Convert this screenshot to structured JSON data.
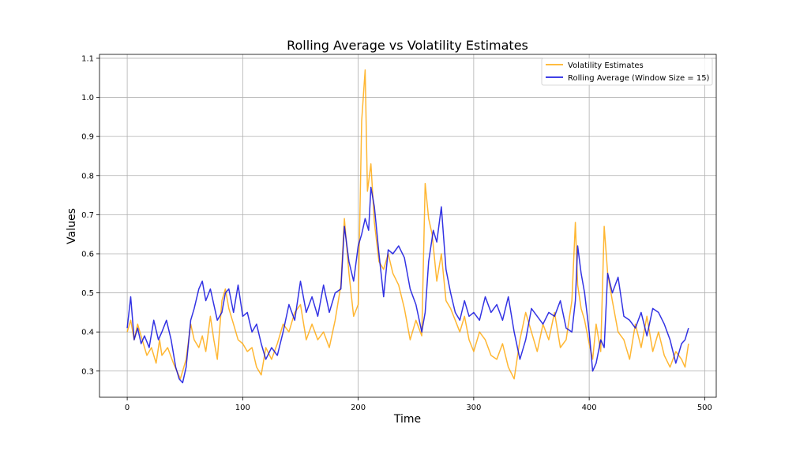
{
  "chart_data": {
    "type": "line",
    "title": "Rolling Average vs Volatility Estimates",
    "xlabel": "Time",
    "ylabel": "Values",
    "xlim": [
      -24,
      510
    ],
    "ylim": [
      0.233,
      1.11
    ],
    "xticks": [
      0,
      100,
      200,
      300,
      400,
      500
    ],
    "yticks": [
      0.3,
      0.4,
      0.5,
      0.6,
      0.7,
      0.8,
      0.9,
      1.0,
      1.1
    ],
    "grid": true,
    "legend_position": "top-right",
    "series": [
      {
        "name": "Volatility Estimates",
        "color": "#FFA500",
        "x": [
          0,
          3,
          6,
          9,
          10,
          13,
          17,
          21,
          25,
          28,
          30,
          35,
          40,
          43,
          46,
          48,
          51,
          55,
          58,
          62,
          65,
          68,
          72,
          75,
          78,
          82,
          85,
          88,
          92,
          96,
          100,
          104,
          108,
          112,
          116,
          120,
          125,
          130,
          135,
          140,
          145,
          150,
          155,
          160,
          165,
          170,
          175,
          180,
          185,
          188,
          192,
          196,
          200,
          203,
          206,
          208,
          211,
          214,
          218,
          222,
          226,
          230,
          235,
          240,
          245,
          250,
          255,
          258,
          261,
          264,
          268,
          272,
          276,
          280,
          284,
          288,
          292,
          296,
          300,
          305,
          310,
          315,
          320,
          325,
          330,
          335,
          340,
          345,
          350,
          355,
          360,
          365,
          370,
          375,
          380,
          385,
          388,
          390,
          393,
          396,
          400,
          403,
          406,
          410,
          413,
          416,
          420,
          425,
          430,
          435,
          440,
          445,
          450,
          455,
          460,
          465,
          470,
          475,
          480,
          483,
          486
        ],
        "y": [
          0.4,
          0.43,
          0.38,
          0.42,
          0.41,
          0.38,
          0.34,
          0.36,
          0.32,
          0.38,
          0.34,
          0.36,
          0.32,
          0.3,
          0.28,
          0.3,
          0.33,
          0.42,
          0.38,
          0.36,
          0.39,
          0.35,
          0.44,
          0.38,
          0.33,
          0.48,
          0.51,
          0.46,
          0.42,
          0.38,
          0.37,
          0.35,
          0.36,
          0.31,
          0.29,
          0.36,
          0.33,
          0.37,
          0.42,
          0.4,
          0.45,
          0.47,
          0.38,
          0.42,
          0.38,
          0.4,
          0.36,
          0.43,
          0.52,
          0.69,
          0.55,
          0.44,
          0.47,
          0.94,
          1.07,
          0.76,
          0.83,
          0.68,
          0.58,
          0.56,
          0.6,
          0.55,
          0.52,
          0.46,
          0.38,
          0.43,
          0.39,
          0.78,
          0.69,
          0.65,
          0.53,
          0.6,
          0.48,
          0.46,
          0.43,
          0.4,
          0.44,
          0.38,
          0.35,
          0.4,
          0.38,
          0.34,
          0.33,
          0.37,
          0.31,
          0.28,
          0.38,
          0.45,
          0.4,
          0.35,
          0.42,
          0.38,
          0.45,
          0.36,
          0.38,
          0.48,
          0.68,
          0.52,
          0.46,
          0.43,
          0.37,
          0.33,
          0.42,
          0.35,
          0.67,
          0.55,
          0.48,
          0.4,
          0.38,
          0.33,
          0.42,
          0.36,
          0.44,
          0.35,
          0.4,
          0.34,
          0.31,
          0.35,
          0.33,
          0.31,
          0.37
        ]
      },
      {
        "name": "Rolling Average (Window Size = 15)",
        "color": "#0000DD",
        "x": [
          0,
          3,
          6,
          9,
          12,
          15,
          19,
          23,
          27,
          30,
          34,
          38,
          42,
          45,
          48,
          51,
          55,
          58,
          62,
          65,
          68,
          72,
          75,
          78,
          82,
          85,
          88,
          92,
          96,
          100,
          104,
          108,
          112,
          116,
          120,
          125,
          130,
          135,
          140,
          145,
          150,
          155,
          160,
          165,
          170,
          175,
          180,
          185,
          188,
          192,
          196,
          200,
          203,
          206,
          209,
          211,
          214,
          218,
          222,
          226,
          230,
          235,
          240,
          245,
          250,
          255,
          258,
          261,
          265,
          268,
          272,
          276,
          280,
          284,
          288,
          292,
          296,
          300,
          305,
          310,
          315,
          320,
          325,
          330,
          335,
          340,
          345,
          350,
          355,
          360,
          365,
          370,
          375,
          380,
          385,
          388,
          390,
          393,
          396,
          400,
          403,
          406,
          410,
          413,
          416,
          420,
          425,
          430,
          435,
          440,
          445,
          450,
          455,
          460,
          465,
          470,
          475,
          480,
          483,
          486
        ],
        "y": [
          0.41,
          0.49,
          0.38,
          0.41,
          0.37,
          0.39,
          0.36,
          0.43,
          0.38,
          0.4,
          0.43,
          0.38,
          0.31,
          0.28,
          0.27,
          0.31,
          0.43,
          0.46,
          0.51,
          0.53,
          0.48,
          0.51,
          0.47,
          0.43,
          0.45,
          0.5,
          0.51,
          0.45,
          0.52,
          0.44,
          0.45,
          0.4,
          0.42,
          0.37,
          0.33,
          0.36,
          0.34,
          0.4,
          0.47,
          0.43,
          0.53,
          0.45,
          0.49,
          0.44,
          0.52,
          0.45,
          0.5,
          0.51,
          0.67,
          0.58,
          0.53,
          0.62,
          0.65,
          0.69,
          0.66,
          0.77,
          0.72,
          0.6,
          0.49,
          0.61,
          0.6,
          0.62,
          0.59,
          0.51,
          0.47,
          0.4,
          0.45,
          0.58,
          0.66,
          0.63,
          0.72,
          0.56,
          0.5,
          0.45,
          0.43,
          0.48,
          0.44,
          0.45,
          0.43,
          0.49,
          0.45,
          0.47,
          0.43,
          0.49,
          0.4,
          0.33,
          0.38,
          0.46,
          0.44,
          0.42,
          0.45,
          0.44,
          0.48,
          0.41,
          0.4,
          0.48,
          0.62,
          0.55,
          0.5,
          0.4,
          0.3,
          0.32,
          0.38,
          0.36,
          0.55,
          0.5,
          0.54,
          0.44,
          0.43,
          0.41,
          0.45,
          0.39,
          0.46,
          0.45,
          0.42,
          0.38,
          0.32,
          0.37,
          0.38,
          0.41
        ]
      }
    ]
  }
}
